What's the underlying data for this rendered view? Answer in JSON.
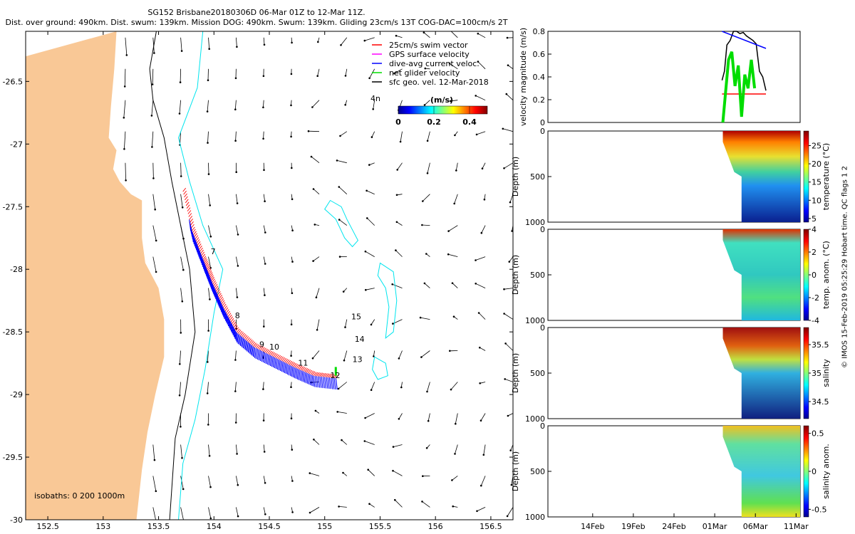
{
  "header": {
    "title_line1": "SG152 Brisbane20180306D 06-Mar 01Z to 12-Mar 11Z.",
    "title_line2": "Dist. over ground: 490km. Dist. swum: 139km. Mission DOG: 490km. Swum: 139km. Gliding 23cm/s 13T COG-DAC=100cm/s 2T"
  },
  "credit": "© IMOS 15-Feb-2019 05:25:29 Hobart time. QC flags 1  2",
  "colors": {
    "land": "#F9C896",
    "isobath_200": "#000000",
    "isobath_1000": "#00E5EE",
    "track": "#0000FF",
    "swim": "#FF0000",
    "net": "#00DD00"
  },
  "chart_data": [
    {
      "type": "map",
      "xlim": [
        152.3,
        156.7
      ],
      "ylim": [
        -30,
        -26.1
      ],
      "x_ticks": [
        "152.5",
        "153",
        "153.5",
        "154",
        "154.5",
        "155",
        "155.5",
        "156",
        "156.5"
      ],
      "x_tick_values": [
        152.5,
        153,
        153.5,
        154,
        154.5,
        155,
        155.5,
        156,
        156.5
      ],
      "y_ticks": [
        "-26.5",
        "-27",
        "-27.5",
        "-28",
        "-28.5",
        "-29",
        "-29.5",
        "-30"
      ],
      "y_tick_values": [
        -26.5,
        -27,
        -27.5,
        -28,
        -28.5,
        -29,
        -29.5,
        -30
      ],
      "legend": [
        {
          "label": "25cm/s swim vector",
          "color": "#FF0000"
        },
        {
          "label": "GPS surface velocity",
          "color": "#FF00FF"
        },
        {
          "label": "dive-avg current veloc.",
          "color": "#0000FF"
        },
        {
          "label": "net glider velocity",
          "color": "#00DD00"
        },
        {
          "label": "sfc geo. vel. 12-Mar-2018",
          "color": "#000000"
        }
      ],
      "colorbar": {
        "title": "(m/s)",
        "ticks": [
          "0",
          "0.2",
          "0.4"
        ],
        "range": [
          0,
          0.5
        ]
      },
      "isobath_label": "isobaths: 0   200  1000m",
      "annotation": "4n",
      "day_labels": [
        {
          "text": "7",
          "lon": 153.97,
          "lat": -27.88
        },
        {
          "text": "8",
          "lon": 154.19,
          "lat": -28.39
        },
        {
          "text": "9",
          "lon": 154.41,
          "lat": -28.62
        },
        {
          "text": "10",
          "lon": 154.5,
          "lat": -28.64
        },
        {
          "text": "11",
          "lon": 154.76,
          "lat": -28.77
        },
        {
          "text": "12",
          "lon": 155.05,
          "lat": -28.87
        },
        {
          "text": "13",
          "lon": 155.25,
          "lat": -28.74
        },
        {
          "text": "14",
          "lon": 155.27,
          "lat": -28.58
        },
        {
          "text": "15",
          "lon": 155.24,
          "lat": -28.4
        }
      ],
      "glider_track": [
        [
          153.72,
          -27.38
        ],
        [
          153.8,
          -27.69
        ],
        [
          153.9,
          -27.92
        ],
        [
          153.98,
          -28.1
        ],
        [
          154.08,
          -28.3
        ],
        [
          154.2,
          -28.5
        ],
        [
          154.36,
          -28.62
        ],
        [
          154.54,
          -28.7
        ],
        [
          154.72,
          -28.78
        ],
        [
          154.9,
          -28.85
        ],
        [
          155.1,
          -28.87
        ]
      ],
      "coast": [
        [
          153.12,
          -26.1
        ],
        [
          153.1,
          -26.4
        ],
        [
          153.07,
          -26.7
        ],
        [
          153.05,
          -26.95
        ],
        [
          153.12,
          -27.05
        ],
        [
          153.09,
          -27.2
        ],
        [
          153.15,
          -27.3
        ],
        [
          153.25,
          -27.4
        ],
        [
          153.35,
          -27.45
        ],
        [
          153.35,
          -27.75
        ],
        [
          153.38,
          -27.95
        ],
        [
          153.5,
          -28.15
        ],
        [
          153.55,
          -28.4
        ],
        [
          153.55,
          -28.7
        ],
        [
          153.47,
          -29
        ],
        [
          153.4,
          -29.3
        ],
        [
          153.35,
          -29.6
        ],
        [
          153.3,
          -30
        ]
      ],
      "isobath_200": [
        [
          153.48,
          -26.1
        ],
        [
          153.42,
          -26.4
        ],
        [
          153.45,
          -26.65
        ],
        [
          153.55,
          -26.95
        ],
        [
          153.62,
          -27.3
        ],
        [
          153.7,
          -27.65
        ],
        [
          153.78,
          -28
        ],
        [
          153.83,
          -28.5
        ],
        [
          153.74,
          -29
        ],
        [
          153.65,
          -29.35
        ],
        [
          153.6,
          -30
        ]
      ],
      "isobath_1000": [
        [
          153.9,
          -26.1
        ],
        [
          153.85,
          -26.55
        ],
        [
          153.68,
          -26.95
        ],
        [
          153.78,
          -27.3
        ],
        [
          153.9,
          -27.65
        ],
        [
          154.08,
          -28
        ],
        [
          154.0,
          -28.35
        ],
        [
          153.92,
          -28.8
        ],
        [
          153.83,
          -29.2
        ],
        [
          153.72,
          -29.55
        ],
        [
          153.68,
          -30
        ]
      ],
      "eddies": [
        [
          [
            155.05,
            -27.45
          ],
          [
            155.15,
            -27.5
          ],
          [
            155.2,
            -27.6
          ],
          [
            155.3,
            -27.77
          ],
          [
            155.25,
            -27.82
          ],
          [
            155.18,
            -27.75
          ],
          [
            155.1,
            -27.6
          ],
          [
            155.0,
            -27.52
          ],
          [
            155.05,
            -27.45
          ]
        ],
        [
          [
            155.5,
            -27.95
          ],
          [
            155.62,
            -28.02
          ],
          [
            155.65,
            -28.25
          ],
          [
            155.62,
            -28.5
          ],
          [
            155.55,
            -28.55
          ],
          [
            155.58,
            -28.3
          ],
          [
            155.55,
            -28.15
          ],
          [
            155.48,
            -28.05
          ],
          [
            155.5,
            -27.95
          ]
        ],
        [
          [
            155.45,
            -28.7
          ],
          [
            155.55,
            -28.75
          ],
          [
            155.57,
            -28.85
          ],
          [
            155.48,
            -28.88
          ],
          [
            155.43,
            -28.8
          ],
          [
            155.45,
            -28.7
          ]
        ]
      ],
      "velocity_field": {
        "lon_start": 152.95,
        "lon_step": 0.25,
        "lat_start": -26.15,
        "lat_step": -0.25
      }
    },
    {
      "type": "line",
      "ylabel": "velocity magnitude (m/s)",
      "ylim": [
        0,
        0.8
      ],
      "y_ticks": [
        "0",
        "0.2",
        "0.4",
        "0.6",
        "0.8"
      ],
      "y_tick_values": [
        0,
        0.2,
        0.4,
        0.6,
        0.8
      ],
      "x_range_days": [
        0,
        31
      ],
      "series": [
        {
          "name": "speed",
          "color": "#000000",
          "x": [
            21.4,
            21.7,
            22.0,
            22.4,
            22.8,
            23.2,
            23.6,
            24.0,
            24.4,
            24.8,
            25.2,
            25.6,
            26.0,
            26.4,
            26.8
          ],
          "y": [
            0.37,
            0.45,
            0.68,
            0.72,
            0.8,
            0.8,
            0.78,
            0.79,
            0.76,
            0.74,
            0.72,
            0.69,
            0.45,
            0.4,
            0.28
          ]
        },
        {
          "name": "trend",
          "color": "#0000FF",
          "x": [
            21.4,
            26.8
          ],
          "y": [
            0.8,
            0.65
          ]
        },
        {
          "name": "swim",
          "color": "#FF0000",
          "x": [
            21.4,
            26.8
          ],
          "y": [
            0.25,
            0.25
          ]
        },
        {
          "name": "net",
          "color": "#00DD00",
          "x": [
            21.5,
            22.2,
            22.6,
            23.0,
            23.4,
            23.8,
            24.2,
            24.6,
            25.0,
            25.4
          ],
          "y": [
            0.0,
            0.55,
            0.62,
            0.32,
            0.5,
            0.05,
            0.42,
            0.3,
            0.55,
            0.3
          ]
        }
      ]
    },
    {
      "type": "heatmap",
      "ylabel": "Depth (m)",
      "cbar_label": "temperature (°C)",
      "cbar_ticks": [
        "5",
        "10",
        "15",
        "20",
        "25"
      ],
      "cbar_tick_values": [
        5,
        10,
        15,
        20,
        25
      ],
      "clim": [
        4,
        29
      ]
    },
    {
      "type": "heatmap",
      "ylabel": "Depth (m)",
      "cbar_label": "temp. anom. (°C)",
      "cbar_ticks": [
        "4",
        "2",
        "0",
        "-2",
        "-4"
      ],
      "cbar_tick_values": [
        4,
        2,
        0,
        -2,
        -4
      ],
      "clim": [
        -4,
        4
      ]
    },
    {
      "type": "heatmap",
      "ylabel": "Depth (m)",
      "cbar_label": "salinity",
      "cbar_ticks": [
        "35.5",
        "35",
        "34.5"
      ],
      "cbar_tick_values": [
        35.5,
        35,
        34.5
      ],
      "clim": [
        34.2,
        35.8
      ]
    },
    {
      "type": "heatmap",
      "ylabel": "Depth (m)",
      "cbar_label": "salinity anom.",
      "cbar_ticks": [
        "0.5",
        "0",
        "-0.5"
      ],
      "cbar_tick_values": [
        0.5,
        0,
        -0.5
      ],
      "clim": [
        -0.6,
        0.6
      ],
      "x_ticks": [
        "14Feb",
        "19Feb",
        "24Feb",
        "01Mar",
        "06Mar",
        "11Mar"
      ],
      "x_tick_days": [
        5.5,
        10.5,
        15.5,
        20.5,
        25.5,
        30.5
      ]
    }
  ],
  "depth_ticks": [
    "0",
    "500",
    "1000"
  ],
  "depth_tick_values": [
    0,
    500,
    1000
  ]
}
